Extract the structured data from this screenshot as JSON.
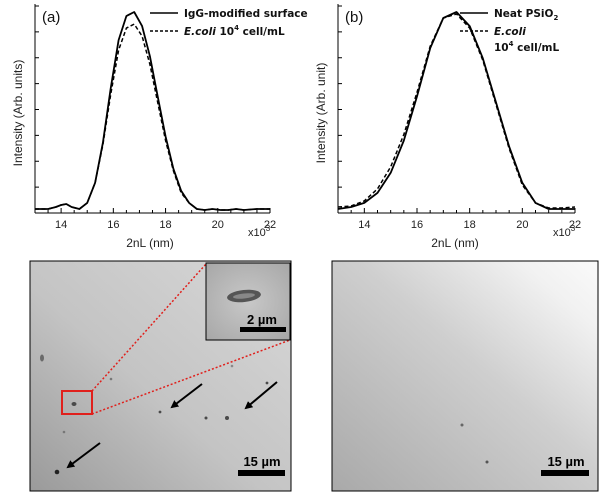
{
  "chart_data": [
    {
      "type": "line",
      "panel_label": "(a)",
      "xlabel": "2nL (nm)",
      "ylabel": "Intensity (Arb. units)",
      "x_multiplier": "x10",
      "x_multiplier_exp": "3",
      "xlim": [
        13000,
        22000
      ],
      "xticks": [
        14,
        16,
        18,
        20,
        22
      ],
      "grid": false,
      "legend_position": "top-right",
      "series": [
        {
          "name": "IgG-modified surface",
          "style": "solid",
          "x": [
            13000,
            13500,
            13800,
            14000,
            14200,
            14400,
            14700,
            15000,
            15300,
            15600,
            15900,
            16200,
            16500,
            16800,
            17100,
            17400,
            17700,
            18000,
            18300,
            18600,
            18900,
            19200,
            19500,
            19800,
            20100,
            20400,
            20700,
            21000,
            21500,
            22000
          ],
          "values": [
            0.02,
            0.02,
            0.03,
            0.04,
            0.045,
            0.03,
            0.02,
            0.05,
            0.15,
            0.35,
            0.62,
            0.86,
            0.98,
            1.0,
            0.93,
            0.78,
            0.58,
            0.38,
            0.22,
            0.11,
            0.05,
            0.02,
            0.015,
            0.02,
            0.015,
            0.015,
            0.02,
            0.015,
            0.02,
            0.02
          ]
        },
        {
          "name": "E.coli",
          "name_suffix": " 10",
          "name_sup": "4",
          "name_tail": " cell/mL",
          "style": "dashed",
          "x": [
            13000,
            13500,
            13800,
            14000,
            14200,
            14400,
            14700,
            15000,
            15300,
            15600,
            15900,
            16200,
            16500,
            16800,
            17100,
            17400,
            17700,
            18000,
            18300,
            18600,
            18900,
            19200,
            19500,
            19800,
            20100,
            20400,
            20700,
            21000,
            21500,
            22000
          ],
          "values": [
            0.02,
            0.02,
            0.03,
            0.04,
            0.045,
            0.03,
            0.02,
            0.05,
            0.15,
            0.34,
            0.59,
            0.81,
            0.92,
            0.94,
            0.88,
            0.74,
            0.55,
            0.36,
            0.21,
            0.1,
            0.05,
            0.02,
            0.015,
            0.02,
            0.015,
            0.015,
            0.02,
            0.015,
            0.02,
            0.02
          ]
        }
      ]
    },
    {
      "type": "line",
      "panel_label": "(b)",
      "xlabel": "2nL (nm)",
      "ylabel": "Intensity (Arb. unit)",
      "x_multiplier": "x10",
      "x_multiplier_exp": "3",
      "xlim": [
        13000,
        22000
      ],
      "xticks": [
        14,
        16,
        18,
        20,
        22
      ],
      "grid": false,
      "legend_position": "top-right",
      "series": [
        {
          "name": "Neat PSiO",
          "name_sub": "2",
          "style": "solid",
          "x": [
            13000,
            13500,
            14000,
            14500,
            15000,
            15500,
            16000,
            16500,
            17000,
            17500,
            18000,
            18500,
            19000,
            19500,
            20000,
            20500,
            21000,
            21500,
            22000
          ],
          "values": [
            0.02,
            0.03,
            0.05,
            0.1,
            0.2,
            0.36,
            0.58,
            0.82,
            0.97,
            1.0,
            0.93,
            0.77,
            0.55,
            0.33,
            0.15,
            0.05,
            0.02,
            0.02,
            0.02
          ]
        },
        {
          "name": "E.coli",
          "name_line2": "10",
          "name_sup": "4",
          "name_tail": " cell/mL",
          "style": "dashed",
          "x": [
            13000,
            13500,
            14000,
            14500,
            15000,
            15500,
            16000,
            16500,
            17000,
            17500,
            18000,
            18500,
            19000,
            19500,
            20000,
            20500,
            21000,
            21500,
            22000
          ],
          "values": [
            0.03,
            0.035,
            0.06,
            0.12,
            0.23,
            0.39,
            0.6,
            0.83,
            0.97,
            0.99,
            0.92,
            0.76,
            0.54,
            0.32,
            0.14,
            0.05,
            0.025,
            0.025,
            0.03
          ]
        }
      ]
    }
  ],
  "micrographs": [
    {
      "scale_bar": "15 µm",
      "inset_scale_bar": "2 µm",
      "highlight_color": "#e0201c",
      "arrows": 3
    },
    {
      "scale_bar": "15 µm"
    }
  ]
}
